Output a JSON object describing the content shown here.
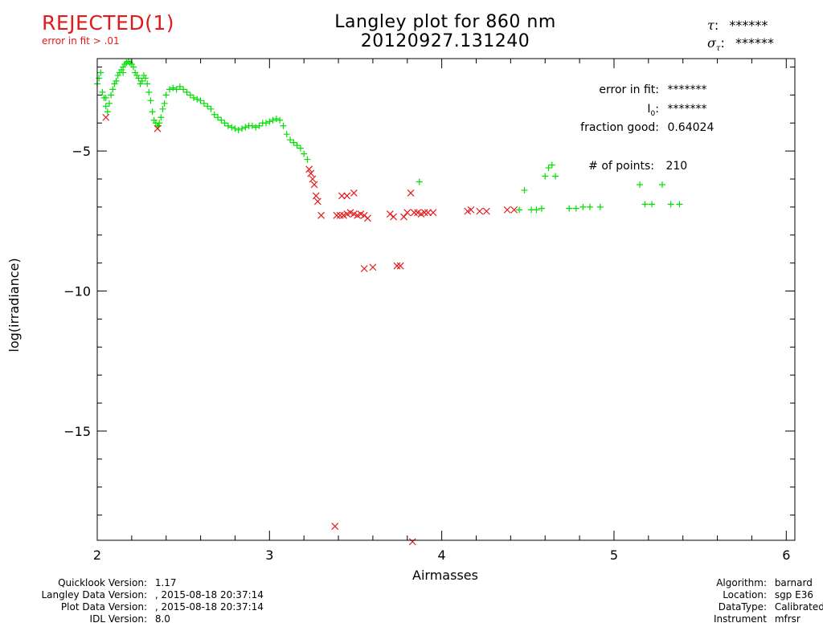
{
  "status": {
    "label": "REJECTED(1)",
    "reason": "error in fit > .01"
  },
  "title": {
    "line1": "Langley plot for 860 nm",
    "line2": "20120927.131240"
  },
  "tau": {
    "tau_label": ":",
    "tau_value": "******",
    "sigma_label": ":",
    "sigma_value": "******"
  },
  "stats": {
    "error_label": "error in fit:",
    "error_value": "*******",
    "i0_label": "I",
    "i0_sub": "0",
    "i0_colon": ":",
    "i0_value": "*******",
    "fraction_label": "fraction good:",
    "fraction_value": "0.64024",
    "points_label": "# of points:",
    "points_value": "210"
  },
  "footer_left": [
    {
      "label": "Quicklook Version:",
      "value": "1.17"
    },
    {
      "label": "Langley Data Version:",
      "value": ", 2015-08-18 20:37:14"
    },
    {
      "label": "Plot Data Version:",
      "value": ", 2015-08-18 20:37:14"
    },
    {
      "label": "IDL Version:",
      "value": "8.0"
    }
  ],
  "footer_right": [
    {
      "label": "Algorithm:",
      "value": "barnard"
    },
    {
      "label": "Location:",
      "value": "sgp E36"
    },
    {
      "label": "DataType:",
      "value": "Calibrated"
    },
    {
      "label": "Instrument",
      "value": "mfrsr"
    }
  ],
  "colors": {
    "good": "#00e000",
    "rejected": "#e31a1c",
    "axis": "#000000"
  },
  "chart_data": {
    "type": "scatter",
    "title": "Langley plot for 860 nm",
    "xlabel": "Airmasses",
    "ylabel": "log(irradiance)",
    "xlim": [
      2,
      6.05
    ],
    "ylim": [
      -18.9,
      -1.7
    ],
    "xticks": [
      2,
      3,
      4,
      5,
      6
    ],
    "yticks": [
      -5,
      -10,
      -15
    ],
    "series": [
      {
        "marker": "plus",
        "color": "#00e000",
        "points": [
          [
            2.0,
            -2.6
          ],
          [
            2.01,
            -2.4
          ],
          [
            2.02,
            -2.2
          ],
          [
            2.03,
            -2.9
          ],
          [
            2.04,
            -3.1
          ],
          [
            2.05,
            -3.4
          ],
          [
            2.06,
            -3.6
          ],
          [
            2.07,
            -3.3
          ],
          [
            2.08,
            -3.0
          ],
          [
            2.09,
            -2.8
          ],
          [
            2.1,
            -2.6
          ],
          [
            2.11,
            -2.5
          ],
          [
            2.12,
            -2.3
          ],
          [
            2.13,
            -2.2
          ],
          [
            2.14,
            -2.1
          ],
          [
            2.15,
            -2.0
          ],
          [
            2.16,
            -1.9
          ],
          [
            2.17,
            -1.85
          ],
          [
            2.18,
            -1.8
          ],
          [
            2.19,
            -1.85
          ],
          [
            2.2,
            -1.9
          ],
          [
            2.21,
            -2.0
          ],
          [
            2.22,
            -2.2
          ],
          [
            2.23,
            -2.3
          ],
          [
            2.24,
            -2.4
          ],
          [
            2.25,
            -2.6
          ],
          [
            2.26,
            -2.5
          ],
          [
            2.27,
            -2.3
          ],
          [
            2.28,
            -2.4
          ],
          [
            2.29,
            -2.6
          ],
          [
            2.3,
            -2.9
          ],
          [
            2.31,
            -3.2
          ],
          [
            2.32,
            -3.6
          ],
          [
            2.33,
            -3.9
          ],
          [
            2.34,
            -4.0
          ],
          [
            2.35,
            -4.1
          ],
          [
            2.36,
            -4.0
          ],
          [
            2.37,
            -3.8
          ],
          [
            2.38,
            -3.5
          ],
          [
            2.39,
            -3.3
          ],
          [
            2.4,
            -3.0
          ],
          [
            2.42,
            -2.8
          ],
          [
            2.44,
            -2.75
          ],
          [
            2.46,
            -2.8
          ],
          [
            2.48,
            -2.7
          ],
          [
            2.5,
            -2.8
          ],
          [
            2.52,
            -2.9
          ],
          [
            2.54,
            -3.0
          ],
          [
            2.56,
            -3.1
          ],
          [
            2.58,
            -3.15
          ],
          [
            2.6,
            -3.2
          ],
          [
            2.62,
            -3.3
          ],
          [
            2.64,
            -3.4
          ],
          [
            2.66,
            -3.5
          ],
          [
            2.68,
            -3.7
          ],
          [
            2.7,
            -3.8
          ],
          [
            2.72,
            -3.9
          ],
          [
            2.74,
            -4.0
          ],
          [
            2.76,
            -4.1
          ],
          [
            2.78,
            -4.15
          ],
          [
            2.8,
            -4.2
          ],
          [
            2.82,
            -4.25
          ],
          [
            2.84,
            -4.2
          ],
          [
            2.86,
            -4.15
          ],
          [
            2.88,
            -4.1
          ],
          [
            2.9,
            -4.1
          ],
          [
            2.92,
            -4.15
          ],
          [
            2.94,
            -4.1
          ],
          [
            2.96,
            -4.0
          ],
          [
            2.98,
            -4.0
          ],
          [
            3.0,
            -3.95
          ],
          [
            3.02,
            -3.9
          ],
          [
            3.04,
            -3.85
          ],
          [
            3.06,
            -3.9
          ],
          [
            3.08,
            -4.1
          ],
          [
            3.1,
            -4.4
          ],
          [
            3.12,
            -4.6
          ],
          [
            3.14,
            -4.7
          ],
          [
            3.16,
            -4.8
          ],
          [
            3.18,
            -4.9
          ],
          [
            3.2,
            -5.1
          ],
          [
            3.22,
            -5.3
          ],
          [
            2.355,
            -4.1
          ],
          [
            2.05,
            -3.1
          ],
          [
            2.15,
            -2.2
          ],
          [
            4.45,
            -7.1
          ],
          [
            4.48,
            -6.4
          ],
          [
            4.52,
            -7.1
          ],
          [
            4.55,
            -7.1
          ],
          [
            4.58,
            -7.05
          ],
          [
            4.6,
            -5.9
          ],
          [
            4.62,
            -5.6
          ],
          [
            4.64,
            -5.5
          ],
          [
            4.66,
            -5.9
          ],
          [
            4.74,
            -7.05
          ],
          [
            4.78,
            -7.05
          ],
          [
            4.82,
            -7.0
          ],
          [
            4.86,
            -7.0
          ],
          [
            4.92,
            -7.0
          ],
          [
            5.15,
            -6.2
          ],
          [
            5.18,
            -6.9
          ],
          [
            5.22,
            -6.9
          ],
          [
            5.28,
            -6.2
          ],
          [
            5.33,
            -6.9
          ],
          [
            5.38,
            -6.9
          ],
          [
            3.87,
            -6.1
          ]
        ]
      },
      {
        "marker": "cross",
        "color": "#e31a1c",
        "points": [
          [
            2.05,
            -3.8
          ],
          [
            2.35,
            -4.2
          ],
          [
            3.23,
            -5.65
          ],
          [
            3.24,
            -5.8
          ],
          [
            3.25,
            -6.0
          ],
          [
            3.26,
            -6.2
          ],
          [
            3.27,
            -6.6
          ],
          [
            3.28,
            -6.8
          ],
          [
            3.3,
            -7.3
          ],
          [
            3.39,
            -7.3
          ],
          [
            3.41,
            -7.3
          ],
          [
            3.43,
            -7.3
          ],
          [
            3.45,
            -7.25
          ],
          [
            3.47,
            -7.2
          ],
          [
            3.49,
            -7.25
          ],
          [
            3.51,
            -7.3
          ],
          [
            3.53,
            -7.25
          ],
          [
            3.55,
            -7.3
          ],
          [
            3.57,
            -7.4
          ],
          [
            3.42,
            -6.6
          ],
          [
            3.45,
            -6.6
          ],
          [
            3.49,
            -6.5
          ],
          [
            3.55,
            -9.2
          ],
          [
            3.6,
            -9.15
          ],
          [
            3.7,
            -7.25
          ],
          [
            3.72,
            -7.35
          ],
          [
            3.74,
            -9.1
          ],
          [
            3.76,
            -9.1
          ],
          [
            3.78,
            -7.35
          ],
          [
            3.8,
            -7.2
          ],
          [
            3.82,
            -6.5
          ],
          [
            3.84,
            -7.2
          ],
          [
            3.86,
            -7.2
          ],
          [
            3.88,
            -7.25
          ],
          [
            3.9,
            -7.2
          ],
          [
            3.92,
            -7.2
          ],
          [
            3.95,
            -7.2
          ],
          [
            3.38,
            -18.4
          ],
          [
            3.83,
            -18.95
          ],
          [
            4.15,
            -7.15
          ],
          [
            4.17,
            -7.1
          ],
          [
            4.22,
            -7.15
          ],
          [
            4.26,
            -7.15
          ],
          [
            4.38,
            -7.1
          ],
          [
            4.42,
            -7.1
          ]
        ]
      }
    ]
  }
}
